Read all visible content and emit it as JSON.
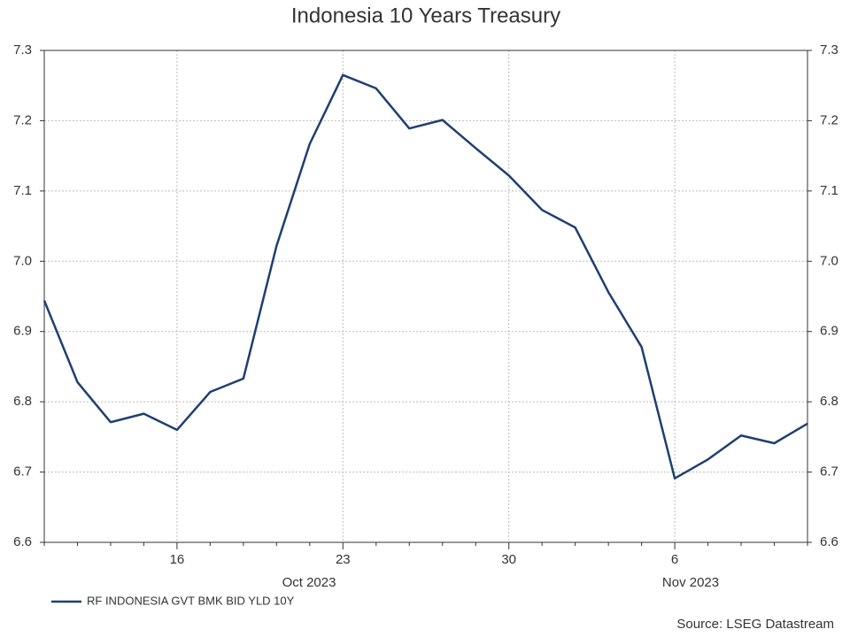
{
  "chart_data": {
    "type": "line",
    "title": "Indonesia 10 Years Treasury",
    "categories": [
      null,
      null,
      null,
      null,
      "16",
      null,
      null,
      null,
      null,
      "23",
      null,
      null,
      null,
      null,
      "30",
      null,
      null,
      null,
      null,
      "6",
      null,
      null,
      null,
      null
    ],
    "x_group_labels": [
      "Oct 2023",
      "Nov 2023"
    ],
    "series": [
      {
        "name": "RF INDONESIA GVT BMK BID YLD 10Y",
        "color": "#1f3f70",
        "values": [
          6.944,
          6.828,
          6.771,
          6.783,
          6.76,
          6.814,
          6.833,
          7.022,
          7.167,
          7.265,
          7.246,
          7.189,
          7.201,
          7.161,
          7.122,
          7.073,
          7.048,
          6.956,
          6.878,
          6.691,
          6.718,
          6.752,
          6.741,
          6.769
        ]
      }
    ],
    "ylim": [
      6.6,
      7.3
    ],
    "yticks": [
      6.6,
      6.7,
      6.8,
      6.9,
      {
        "value": 7,
        "label": "7.0"
      },
      7.1,
      7.2,
      7.3
    ],
    "grid": true,
    "source": "Source: LSEG Datastream"
  }
}
